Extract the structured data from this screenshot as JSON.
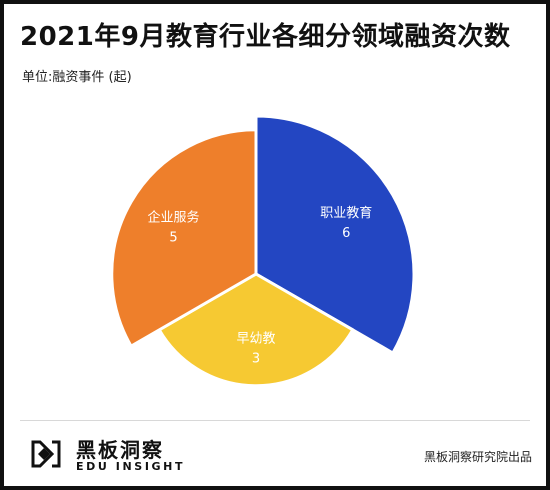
{
  "title": "2021年9月教育行业各细分领域融资次数",
  "unit_label": "单位:融资事件 (起)",
  "source": "黑板洞察研究院出品",
  "logo": {
    "name_cn": "黑板洞察",
    "name_en": "EDU INSIGHT"
  },
  "colors": {
    "vocational": "#2346c2",
    "early": "#f6c932",
    "k12": "#ee7f2b",
    "label_text": "#ffffff"
  },
  "chart_data": {
    "type": "pie",
    "variant": "rose",
    "title": "2021年9月教育行业各细分领域融资次数",
    "unit": "融资事件 (起)",
    "series": [
      {
        "name": "职业教育",
        "value": 6,
        "color": "#2346c2"
      },
      {
        "name": "早幼教",
        "value": 3,
        "color": "#f6c932"
      },
      {
        "name": "企业服务",
        "value": 5,
        "color": "#ee7f2b"
      }
    ]
  }
}
